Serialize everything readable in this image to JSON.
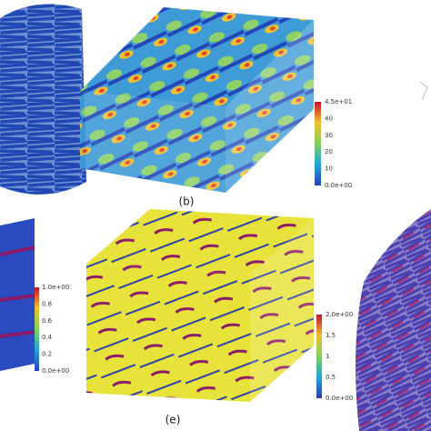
{
  "panels": [
    {
      "label": "(b)",
      "colorbar": [
        "4.5e+01",
        "40",
        "30",
        "20",
        "10",
        "0.0e+00"
      ]
    },
    {
      "label": null,
      "colorbar": [
        "1.0e+00",
        "0.8",
        "0.6",
        "0.4",
        "0.2",
        "0.0e+00"
      ]
    },
    {
      "label": "(e)",
      "colorbar": [
        "2.0e+00",
        "1.5",
        "1",
        "0.5",
        "0.0e+00"
      ]
    }
  ]
}
